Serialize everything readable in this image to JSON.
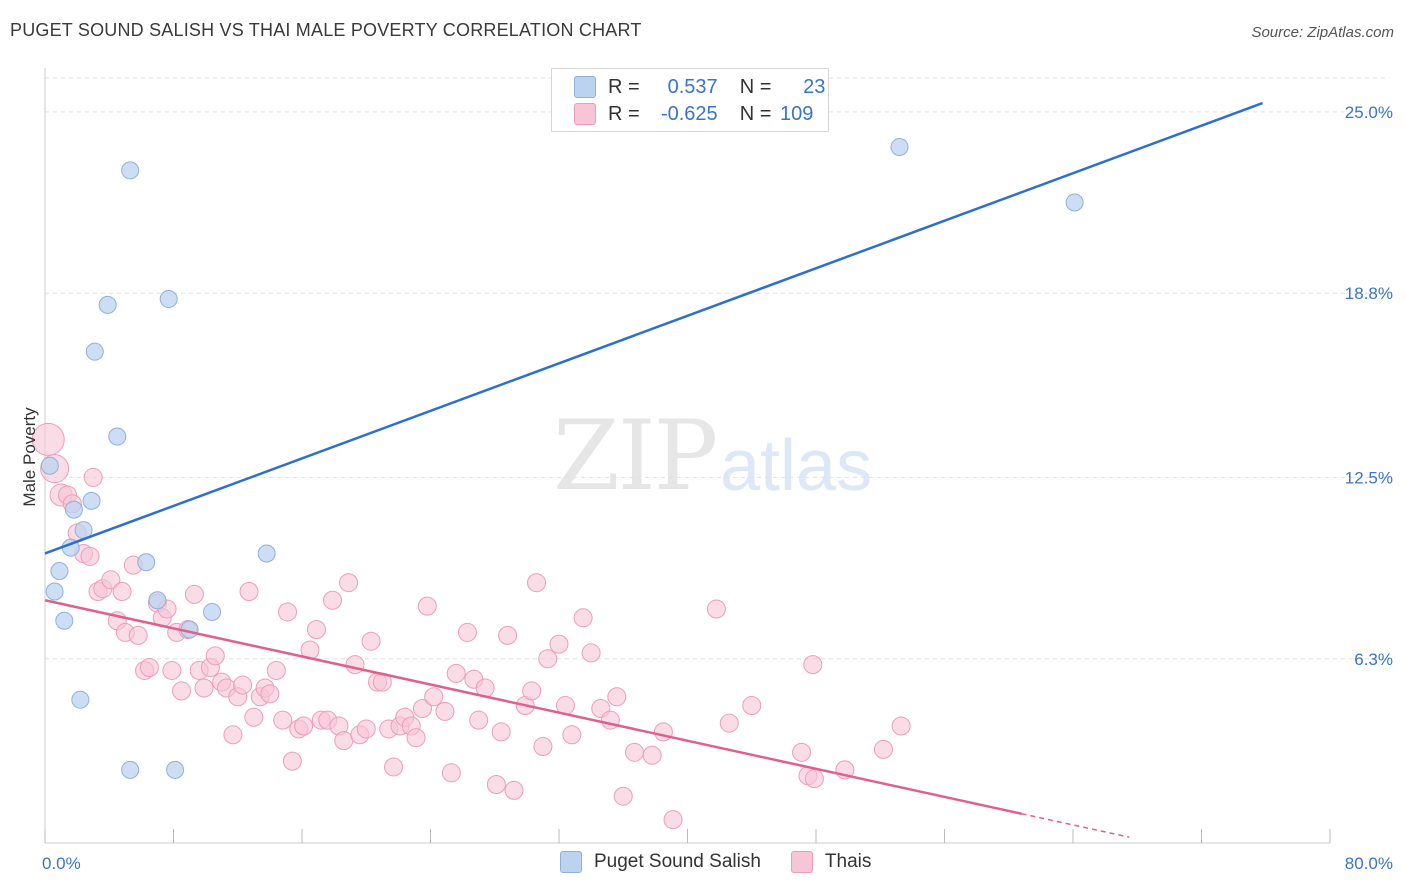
{
  "title": "PUGET SOUND SALISH VS THAI MALE POVERTY CORRELATION CHART",
  "source": "Source: ZipAtlas.com",
  "watermark_zip": "ZIP",
  "watermark_atlas": "atlas",
  "legend": {
    "row1": {
      "r_label": "R =",
      "r_value": "0.537",
      "n_label": "N =",
      "n_value": "23"
    },
    "row2": {
      "r_label": "R =",
      "r_value": "-0.625",
      "n_label": "N =",
      "n_value": "109"
    }
  },
  "colors": {
    "blue_fill": "#bcd3f0",
    "blue_stroke": "#8fb1dc",
    "blue_line": "#2d6fcf",
    "pink_fill": "#f7c5d5",
    "pink_stroke": "#ee9db8",
    "pink_line": "#e0608c",
    "axis_text": "#3a74c9",
    "grid": "#e0e0e0"
  },
  "chart_data": {
    "type": "scatter",
    "title": "PUGET SOUND SALISH VS THAI MALE POVERTY CORRELATION CHART",
    "xlabel": "",
    "ylabel": "Male Poverty",
    "xlim": [
      0,
      80
    ],
    "ylim": [
      0,
      26.5
    ],
    "x_tick_labels": [
      "0.0%",
      "80.0%"
    ],
    "y_ticks": [
      6.3,
      12.5,
      18.8,
      25.0
    ],
    "y_tick_labels": [
      "6.3%",
      "12.5%",
      "18.8%",
      "25.0%"
    ],
    "grid": true,
    "legend_position": "bottom",
    "series": [
      {
        "name": "Puget Sound Salish",
        "color": "#bcd3f0",
        "trend": {
          "x": [
            0,
            75.8
          ],
          "y": [
            9.9,
            25.3
          ]
        },
        "points": [
          [
            0.3,
            12.9
          ],
          [
            0.6,
            8.6
          ],
          [
            0.9,
            9.3
          ],
          [
            1.2,
            7.6
          ],
          [
            1.6,
            10.1
          ],
          [
            1.8,
            11.4
          ],
          [
            2.4,
            10.7
          ],
          [
            2.9,
            11.7
          ],
          [
            3.1,
            16.8
          ],
          [
            3.9,
            18.4
          ],
          [
            4.5,
            13.9
          ],
          [
            2.2,
            4.9
          ],
          [
            5.3,
            2.5
          ],
          [
            5.3,
            23.0
          ],
          [
            6.3,
            9.6
          ],
          [
            7.0,
            8.3
          ],
          [
            7.7,
            18.6
          ],
          [
            8.1,
            2.5
          ],
          [
            9.0,
            7.3
          ],
          [
            10.4,
            7.9
          ],
          [
            13.8,
            9.9
          ],
          [
            53.2,
            23.8
          ],
          [
            64.1,
            21.9
          ]
        ]
      },
      {
        "name": "Thais",
        "color": "#f7c5d5",
        "trend": {
          "x": [
            0,
            60.8
          ],
          "y": [
            8.3,
            1.0
          ]
        },
        "trend_dashed": {
          "x": [
            60.8,
            67.5
          ],
          "y": [
            1.0,
            0.2
          ]
        },
        "points": [
          [
            0.2,
            13.8
          ],
          [
            0.6,
            12.8
          ],
          [
            1.0,
            11.9
          ],
          [
            1.4,
            11.9
          ],
          [
            1.7,
            11.6
          ],
          [
            2.0,
            10.6
          ],
          [
            2.4,
            9.9
          ],
          [
            2.8,
            9.8
          ],
          [
            3.0,
            12.5
          ],
          [
            3.3,
            8.6
          ],
          [
            3.6,
            8.7
          ],
          [
            4.1,
            9.0
          ],
          [
            4.5,
            7.6
          ],
          [
            4.8,
            8.6
          ],
          [
            5.0,
            7.2
          ],
          [
            5.5,
            9.5
          ],
          [
            5.8,
            7.1
          ],
          [
            6.2,
            5.9
          ],
          [
            6.5,
            6.0
          ],
          [
            7.0,
            8.2
          ],
          [
            7.3,
            7.7
          ],
          [
            7.6,
            8.0
          ],
          [
            7.9,
            5.9
          ],
          [
            8.2,
            7.2
          ],
          [
            8.5,
            5.2
          ],
          [
            8.9,
            7.3
          ],
          [
            9.3,
            8.5
          ],
          [
            9.6,
            5.9
          ],
          [
            9.9,
            5.3
          ],
          [
            10.3,
            6.0
          ],
          [
            10.6,
            6.4
          ],
          [
            11.0,
            5.5
          ],
          [
            11.3,
            5.3
          ],
          [
            11.7,
            3.7
          ],
          [
            12.0,
            5.0
          ],
          [
            12.3,
            5.4
          ],
          [
            12.7,
            8.6
          ],
          [
            13.0,
            4.3
          ],
          [
            13.4,
            5.0
          ],
          [
            13.7,
            5.3
          ],
          [
            14.0,
            5.1
          ],
          [
            14.4,
            5.9
          ],
          [
            14.8,
            4.2
          ],
          [
            15.1,
            7.9
          ],
          [
            15.4,
            2.8
          ],
          [
            15.8,
            3.9
          ],
          [
            16.1,
            4.0
          ],
          [
            16.5,
            6.6
          ],
          [
            16.9,
            7.3
          ],
          [
            17.2,
            4.2
          ],
          [
            17.6,
            4.2
          ],
          [
            17.9,
            8.3
          ],
          [
            18.3,
            4.0
          ],
          [
            18.6,
            3.5
          ],
          [
            18.9,
            8.9
          ],
          [
            19.3,
            6.1
          ],
          [
            19.6,
            3.7
          ],
          [
            20.0,
            3.9
          ],
          [
            20.3,
            6.9
          ],
          [
            20.7,
            5.5
          ],
          [
            21.0,
            5.5
          ],
          [
            21.4,
            3.9
          ],
          [
            21.7,
            2.6
          ],
          [
            22.1,
            4.0
          ],
          [
            22.4,
            4.3
          ],
          [
            22.8,
            4.0
          ],
          [
            23.1,
            3.6
          ],
          [
            23.5,
            4.6
          ],
          [
            23.8,
            8.1
          ],
          [
            24.2,
            5.0
          ],
          [
            24.9,
            4.5
          ],
          [
            25.3,
            2.4
          ],
          [
            25.6,
            5.8
          ],
          [
            26.3,
            7.2
          ],
          [
            26.7,
            5.6
          ],
          [
            27.0,
            4.2
          ],
          [
            27.4,
            5.3
          ],
          [
            28.1,
            2.0
          ],
          [
            28.4,
            3.8
          ],
          [
            28.8,
            7.1
          ],
          [
            29.2,
            1.8
          ],
          [
            29.9,
            4.7
          ],
          [
            30.3,
            5.2
          ],
          [
            30.6,
            8.9
          ],
          [
            31.0,
            3.3
          ],
          [
            31.3,
            6.3
          ],
          [
            32.0,
            6.8
          ],
          [
            32.4,
            4.7
          ],
          [
            32.8,
            3.7
          ],
          [
            33.5,
            7.7
          ],
          [
            34.0,
            6.5
          ],
          [
            34.6,
            4.6
          ],
          [
            35.2,
            4.2
          ],
          [
            35.6,
            5.0
          ],
          [
            36.0,
            1.6
          ],
          [
            36.7,
            3.1
          ],
          [
            37.8,
            3.0
          ],
          [
            38.5,
            3.8
          ],
          [
            39.1,
            0.8
          ],
          [
            41.8,
            8.0
          ],
          [
            42.6,
            4.1
          ],
          [
            44.0,
            4.7
          ],
          [
            47.1,
            3.1
          ],
          [
            47.5,
            2.3
          ],
          [
            47.8,
            6.1
          ],
          [
            47.9,
            2.2
          ],
          [
            49.8,
            2.5
          ],
          [
            52.2,
            3.2
          ],
          [
            53.3,
            4.0
          ]
        ]
      }
    ]
  },
  "bottom_legend": {
    "item1": "Puget Sound Salish",
    "item2": "Thais"
  }
}
